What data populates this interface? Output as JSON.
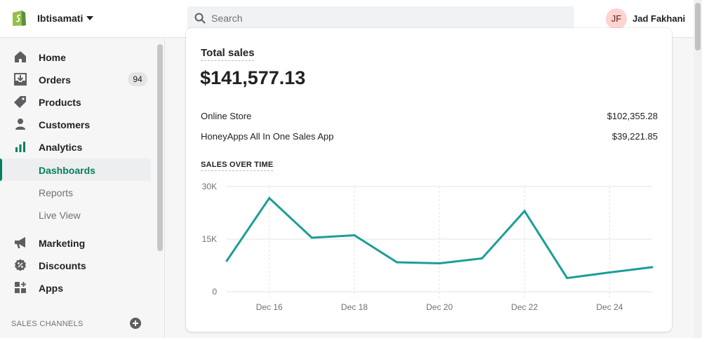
{
  "topbar": {
    "store_name": "Ibtisamati",
    "search_placeholder": "Search",
    "user_initials": "JF",
    "user_name": "Jad Fakhani"
  },
  "sidebar": {
    "items": [
      {
        "label": "Home",
        "icon": "home-icon"
      },
      {
        "label": "Orders",
        "icon": "orders-icon",
        "badge": "94"
      },
      {
        "label": "Products",
        "icon": "tag-icon"
      },
      {
        "label": "Customers",
        "icon": "person-icon"
      },
      {
        "label": "Analytics",
        "icon": "bar-chart-icon"
      },
      {
        "label": "Dashboards",
        "active": true
      },
      {
        "label": "Reports"
      },
      {
        "label": "Live View"
      },
      {
        "label": "Marketing",
        "icon": "megaphone-icon"
      },
      {
        "label": "Discounts",
        "icon": "discount-icon"
      },
      {
        "label": "Apps",
        "icon": "apps-icon"
      }
    ],
    "channels_title": "SALES CHANNELS"
  },
  "card": {
    "title": "Total sales",
    "total": "$141,577.13",
    "breakdown": [
      {
        "label": "Online Store",
        "value": "$102,355.28"
      },
      {
        "label": "HoneyApps All In One Sales App",
        "value": "$39,221.85"
      }
    ],
    "sales_over_time_title": "SALES OVER TIME"
  },
  "colors": {
    "accent": "#008060",
    "line": "#1a9e96"
  },
  "chart_data": {
    "type": "line",
    "y_ticks": [
      "30K",
      "15K",
      "0"
    ],
    "x_ticks": [
      "Dec 16",
      "Dec 18",
      "Dec 20",
      "Dec 22",
      "Dec 24"
    ],
    "ylim": [
      0,
      30000
    ],
    "grid": true,
    "series": [
      {
        "x": [
          15,
          16,
          17,
          18,
          19,
          20,
          21,
          22,
          23,
          24,
          25
        ],
        "values": [
          8800,
          26700,
          15400,
          16100,
          8400,
          8100,
          9500,
          23000,
          3900,
          5500,
          7000
        ]
      }
    ]
  }
}
